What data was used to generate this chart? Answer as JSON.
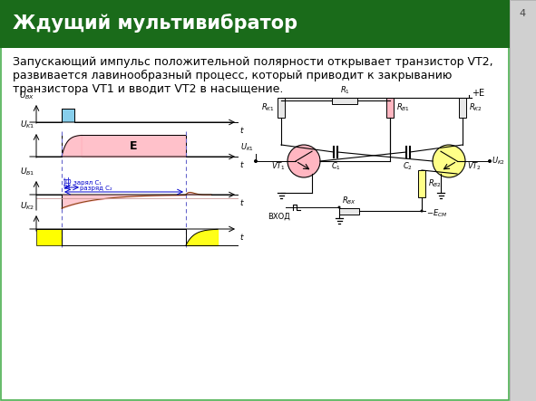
{
  "title": "Ждущий мультивибратор",
  "title_color": "#ffffff",
  "title_bg_color": "#1a6b1a",
  "page_bg_color": "#d4d4d4",
  "slide_bg_color": "#ffffff",
  "page_number": "4",
  "body_text_line1": "Запускающий импульс положительной полярности открывает транзистор VT2,",
  "body_text_line2": "развивается лавинообразный процесс, который приводит к закрыванию",
  "body_text_line3": "транзистора VT1 и вводит VT2 в насыщение.",
  "waveform_colors": {
    "ubx_pulse": "#87ceeb",
    "uk1_fill": "#ffb6c1",
    "ub1_fill": "#ffb6c1",
    "uk2_fill": "#ffff00",
    "dashed_line": "#6666cc",
    "axis_color": "#000000"
  },
  "circuit_colors": {
    "transistor_vt1": "#ffb6c1",
    "transistor_vt2": "#ffff88",
    "resistor_rb1_fill": "#ffb6c1",
    "resistor_rb2_fill": "#ffff88",
    "resistor_gray": "#e8e8e8",
    "wire": "#000000"
  },
  "border_color": "#4caf50"
}
